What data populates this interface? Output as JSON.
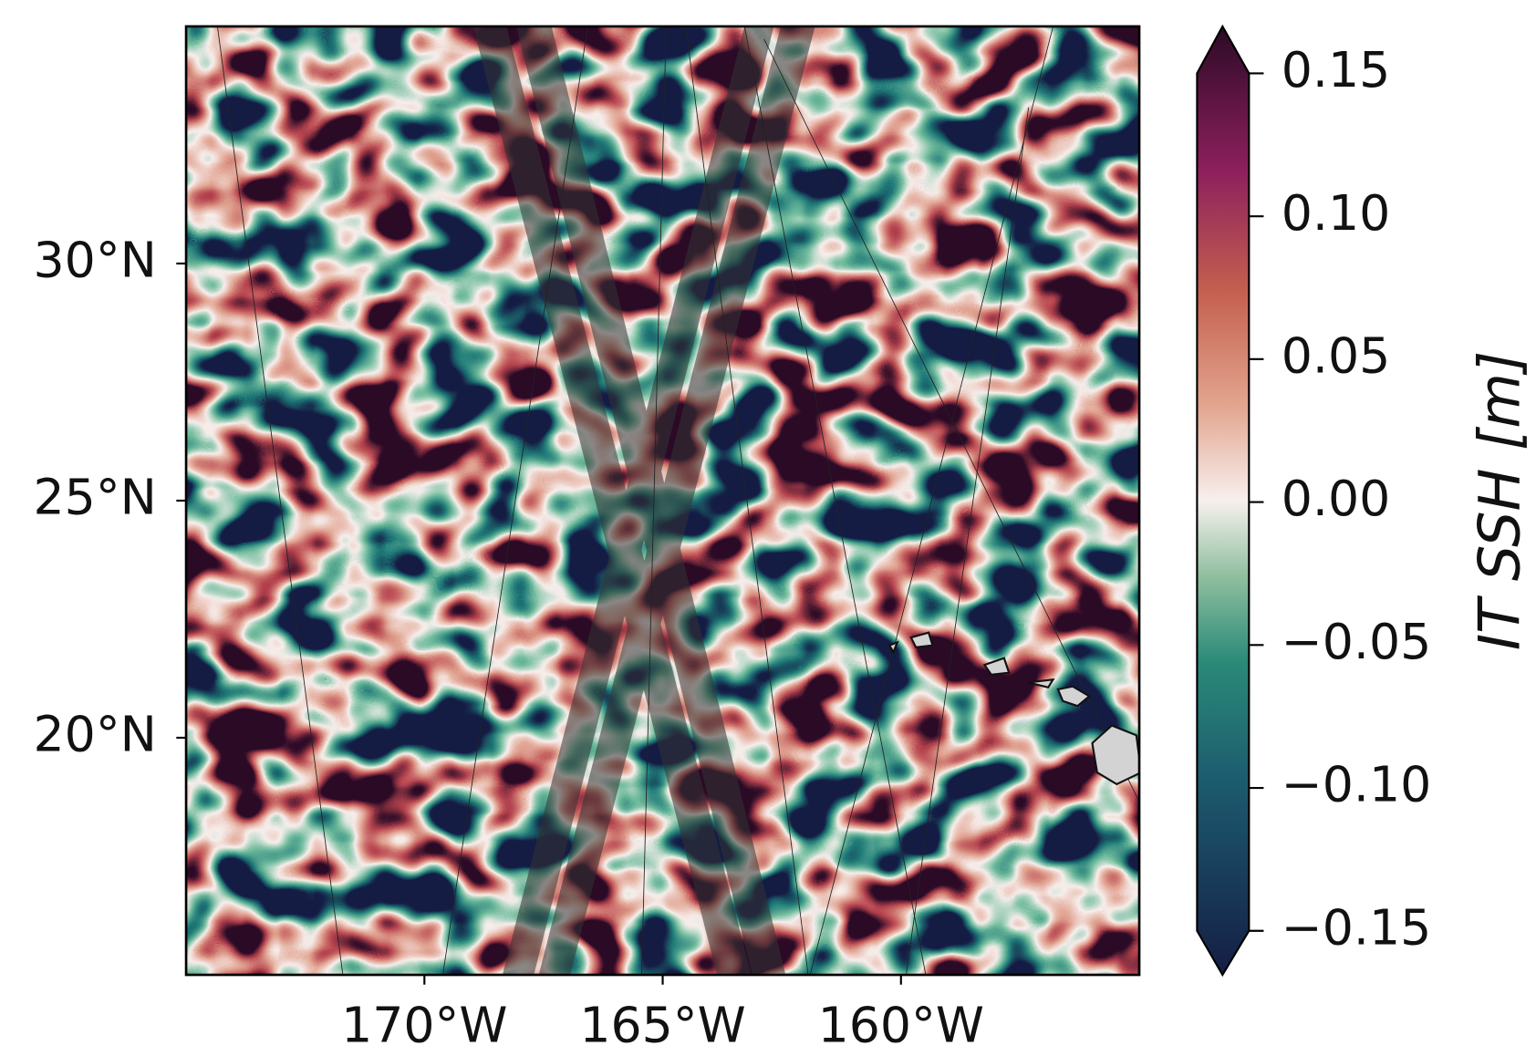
{
  "chart_data": {
    "type": "map",
    "xlim": [
      -175,
      -155
    ],
    "ylim": [
      15,
      35
    ],
    "xticks": [
      {
        "value": -170,
        "label": "170°W"
      },
      {
        "value": -165,
        "label": "165°W"
      },
      {
        "value": -160,
        "label": "160°W"
      }
    ],
    "yticks": [
      {
        "value": 20,
        "label": "20°N"
      },
      {
        "value": 25,
        "label": "25°N"
      },
      {
        "value": 30,
        "label": "30°N"
      }
    ],
    "colorbar": {
      "label": "IT SSH [m]",
      "lim": [
        -0.15,
        0.15
      ],
      "extend": "both",
      "ticks": [
        {
          "value": -0.15,
          "label": "−0.15"
        },
        {
          "value": -0.1,
          "label": "−0.10"
        },
        {
          "value": -0.05,
          "label": "−0.05"
        },
        {
          "value": 0,
          "label": "0.00"
        },
        0.05,
        {
          "value": 0.1,
          "label": "0.10"
        },
        0.15
      ]
    }
  }
}
